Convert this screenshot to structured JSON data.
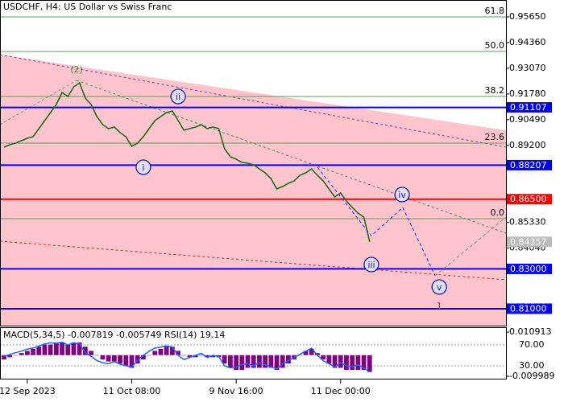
{
  "chart_data": [
    {
      "type": "line",
      "title": "USDCHF, H4:  US Dollar vs Swiss Franc",
      "categories": [
        null,
        null,
        null,
        null,
        "12 Sep 2023",
        null,
        null,
        null,
        null,
        null,
        null,
        null,
        null,
        null,
        null,
        null,
        null,
        null,
        null,
        null,
        null,
        null,
        "11 Oct 08:00",
        null,
        null,
        null,
        null,
        null,
        null,
        null,
        null,
        null,
        null,
        null,
        null,
        null,
        null,
        null,
        null,
        null,
        "9 Nov 16:00",
        null,
        null,
        null,
        null,
        null,
        null,
        null,
        null,
        null,
        null,
        null,
        null,
        null,
        null,
        null,
        null,
        null,
        "11 Dec 00:00",
        null,
        null,
        null,
        null,
        null
      ],
      "values": [
        0.89112,
        0.89233,
        0.89313,
        0.89435,
        0.89556,
        0.89636,
        0.9004,
        0.90444,
        0.90847,
        0.91251,
        0.91856,
        0.91654,
        0.92139,
        0.9234,
        0.91574,
        0.91251,
        0.90645,
        0.90242,
        0.9004,
        0.90121,
        0.89838,
        0.89636,
        0.89152,
        0.89313,
        0.89636,
        0.9004,
        0.90444,
        0.90645,
        0.90847,
        0.90928,
        0.90444,
        0.89959,
        0.9004,
        0.90121,
        0.90242,
        0.9004,
        0.90121,
        0.9004,
        0.89031,
        0.88627,
        0.88506,
        0.88345,
        0.88304,
        0.88224,
        0.88022,
        0.8782,
        0.87538,
        0.87013,
        0.87134,
        0.87295,
        0.87417,
        0.87699,
        0.8782,
        0.88022,
        0.87699,
        0.87417,
        0.87013,
        0.86609,
        0.86811,
        0.86408,
        0.86085,
        0.85802,
        0.856,
        0.84357
      ],
      "color": "#1f6b1f",
      "xlim": [
        -0.7,
        86.5
      ],
      "ylim": [
        0.80152,
        0.96498
      ],
      "yticks": [
        {
          "value": 0.9565,
          "label": "0.95650"
        },
        {
          "value": 0.9436,
          "label": "0.94360"
        },
        {
          "value": 0.9307,
          "label": "0.93070"
        },
        {
          "value": 0.9178,
          "label": "0.91780"
        },
        {
          "value": 0.9049,
          "label": "0.90490"
        },
        {
          "value": 0.892,
          "label": "0.89200"
        },
        {
          "value": 0.8533,
          "label": "0.85330"
        },
        {
          "value": 0.8404,
          "label": "0.84040"
        }
      ],
      "fib_levels": [
        {
          "label": "61.8",
          "value": 0.9565
        },
        {
          "label": "50.0",
          "value": 0.93915
        },
        {
          "label": "38.2",
          "value": 0.91654
        },
        {
          "label": "23.6",
          "value": 0.89313
        },
        {
          "label": "0.0",
          "value": 0.8552
        }
      ],
      "fib_color": "#5aa05a",
      "levels": [
        {
          "value": 0.91107,
          "label": "0.91107",
          "color": "#0000ff"
        },
        {
          "value": 0.88207,
          "label": "0.88207",
          "color": "#0000ff"
        },
        {
          "value": 0.865,
          "label": "0.86500",
          "color": "#ff0000"
        },
        {
          "value": 0.83,
          "label": "0.83000",
          "color": "#0000ff"
        },
        {
          "value": 0.81,
          "label": "0.81000",
          "color": "#0000ff"
        }
      ],
      "last_price": {
        "value": 0.84357,
        "label": "0.84357",
        "color": "#bdbdbd"
      },
      "waves": [
        {
          "label": "(2)",
          "x": 12.5,
          "y": 0.93027,
          "color": "#3c8c3c",
          "circled": false
        },
        {
          "label": "i",
          "x": 24,
          "y": 0.88103,
          "color": "#1a1aa0",
          "circled": true
        },
        {
          "label": "ii",
          "x": 30,
          "y": 0.91654,
          "color": "#1a1aa0",
          "circled": true
        },
        {
          "label": "iii",
          "x": 63.3,
          "y": 0.83219,
          "color": "#1a1aa0",
          "circled": true
        },
        {
          "label": "iv",
          "x": 68.6,
          "y": 0.8673,
          "color": "#1a1aa0",
          "circled": true
        },
        {
          "label": "v",
          "x": 75,
          "y": 0.82089,
          "color": "#1a1aa0",
          "circled": true
        },
        {
          "label": "1",
          "x": 75,
          "y": 0.81161,
          "color": "#d02020",
          "circled": false
        }
      ],
      "projection": [
        {
          "color": "#2a2ae0",
          "x": [
            54,
            63.3,
            68.7,
            74.3
          ],
          "values": [
            0.88103,
            0.84663,
            0.86085,
            0.82654
          ]
        },
        {
          "color": "#888888",
          "x": [
            74.3,
            86.5
          ],
          "values": [
            0.82654,
            0.856
          ]
        }
      ]
    },
    {
      "type": "macd",
      "title": "MACD(5,34,5) -0.007819 -0.005749 RSI(14) 19.14",
      "ylim": [
        -0.011509,
        0.012813
      ],
      "yticks": [
        0.010913,
        -0.009989
      ],
      "y2lim": [
        3.85,
        102.3
      ],
      "y2ticks": [
        {
          "value": 70,
          "label": "70.00"
        },
        {
          "value": 30,
          "label": "30.00"
        }
      ],
      "series": [
        {
          "color": "#800080",
          "values": [
            -0.002,
            -0.001,
            0,
            0.001,
            0.002,
            0.003,
            0.004,
            0.005,
            0.005,
            0.006,
            0.006,
            0.005,
            0.006,
            0.006,
            0.004,
            0.002,
            0,
            -0.002,
            -0.003,
            -0.003,
            -0.004,
            -0.005,
            -0.006,
            -0.004,
            -0.002,
            0,
            0.002,
            0.003,
            0.004,
            0.004,
            0.002,
            0,
            -0.001,
            -0.001,
            0,
            -0.001,
            -0.001,
            -0.001,
            -0.004,
            -0.006,
            -0.007,
            -0.007,
            -0.006,
            -0.006,
            -0.006,
            -0.006,
            -0.006,
            -0.007,
            -0.006,
            -0.004,
            -0.002,
            0,
            0.002,
            0.003,
            0.001,
            -0.002,
            -0.004,
            -0.006,
            -0.006,
            -0.007,
            -0.007,
            -0.007,
            -0.007,
            -0.008
          ]
        },
        {
          "color": "#1e64ff",
          "axis": "y2",
          "values": [
            48,
            52,
            55,
            58,
            62,
            64,
            68,
            72,
            74,
            73,
            75,
            70,
            74,
            72,
            55,
            48,
            40,
            36,
            34,
            38,
            33,
            30,
            28,
            40,
            50,
            58,
            64,
            66,
            68,
            66,
            50,
            42,
            46,
            50,
            54,
            46,
            50,
            48,
            30,
            26,
            28,
            32,
            34,
            30,
            36,
            32,
            28,
            24,
            34,
            40,
            46,
            52,
            58,
            64,
            50,
            40,
            34,
            28,
            36,
            30,
            28,
            32,
            26,
            19.14
          ]
        }
      ]
    }
  ]
}
